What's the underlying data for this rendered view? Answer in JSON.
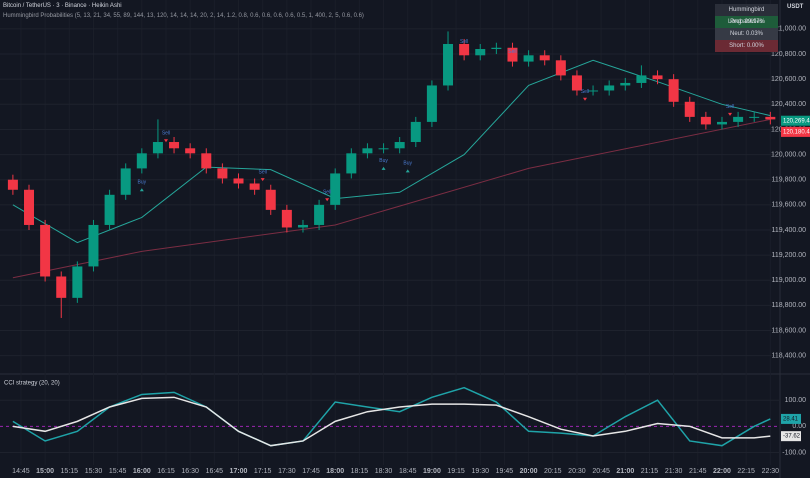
{
  "header": {
    "symbol": "Bitcoin / TetherUS · 3 · Binance · Heikin Ashi",
    "indicator": "Hummingbird Probabilities (5, 13, 21, 34, 55, 89, 144, 13, 120, 14, 14, 14, 20, 2, 14, 1.2, 0.8, 0.6, 0.6, 0.6, 0.6, 0.5, 1, 400, 2, 5, 0.6, 0.6)",
    "currency": "USDT"
  },
  "table": {
    "title": "Hummingbird Probabilities",
    "rows": [
      "Long: 99.97%",
      "Neut: 0.03%",
      "Short: 0.00%"
    ]
  },
  "chart_data": [
    {
      "type": "candlestick",
      "up_color": "#089981",
      "down_color": "#f23645",
      "x": [
        880,
        890,
        900,
        910,
        920,
        930,
        940,
        950,
        960,
        970,
        980,
        990,
        1000,
        1010,
        1020,
        1030,
        1040,
        1050,
        1060,
        1070,
        1080,
        1090,
        1100,
        1110,
        1120,
        1130,
        1140,
        1150,
        1160,
        1170,
        1180,
        1190,
        1200,
        1210,
        1220,
        1230,
        1240,
        1250,
        1260,
        1270,
        1280,
        1290,
        1300,
        1310,
        1320,
        1330,
        1340,
        1350
      ],
      "open": [
        119800,
        119720,
        119440,
        119030,
        118860,
        119110,
        119440,
        119680,
        119890,
        120010,
        120100,
        120050,
        120010,
        119890,
        119810,
        119770,
        119720,
        119560,
        119420,
        119440,
        119600,
        119850,
        120010,
        120050,
        120050,
        120100,
        120260,
        120550,
        120880,
        120790,
        120840,
        120850,
        120740,
        120790,
        120750,
        120630,
        120510,
        120510,
        120550,
        120570,
        120630,
        120600,
        120420,
        120300,
        120240,
        120260,
        120300,
        120300
      ],
      "high": [
        119840,
        119760,
        119480,
        119070,
        119150,
        119480,
        119720,
        119930,
        120050,
        120280,
        120140,
        120090,
        120050,
        119930,
        119850,
        119810,
        119760,
        119600,
        119480,
        119640,
        119890,
        120050,
        120090,
        120090,
        120140,
        120300,
        120590,
        120980,
        120920,
        120880,
        120890,
        120890,
        120830,
        120830,
        120790,
        120670,
        120550,
        120590,
        120610,
        120710,
        120670,
        120640,
        120460,
        120340,
        120300,
        120340,
        120340,
        120340
      ],
      "low": [
        119680,
        119400,
        118990,
        118700,
        118820,
        119070,
        119400,
        119640,
        119850,
        119970,
        120010,
        119970,
        119850,
        119770,
        119730,
        119680,
        119520,
        119380,
        119380,
        119400,
        119560,
        119810,
        119970,
        120010,
        120010,
        120060,
        120220,
        120510,
        120750,
        120750,
        120800,
        120700,
        120700,
        120710,
        120590,
        120470,
        120470,
        120470,
        120510,
        120530,
        120560,
        120380,
        120260,
        120200,
        120200,
        120220,
        120260,
        120240
      ],
      "close": [
        119720,
        119440,
        119030,
        118860,
        119110,
        119440,
        119680,
        119890,
        120010,
        120100,
        120050,
        120010,
        119890,
        119810,
        119770,
        119720,
        119560,
        119420,
        119440,
        119600,
        119850,
        120010,
        120050,
        120050,
        120100,
        120260,
        120550,
        120880,
        120790,
        120840,
        120850,
        120740,
        120790,
        120750,
        120630,
        120510,
        120510,
        120550,
        120570,
        120630,
        120600,
        120420,
        120300,
        120240,
        120260,
        120300,
        120300,
        120280
      ],
      "lines": [
        {
          "color": "#26a69a",
          "x": [
            880,
            920,
            960,
            1000,
            1040,
            1080,
            1120,
            1160,
            1200,
            1240,
            1280,
            1320,
            1350
          ],
          "values": [
            119600,
            119300,
            119500,
            119900,
            119880,
            119650,
            119700,
            120000,
            120550,
            120750,
            120580,
            120400,
            120310
          ]
        },
        {
          "color": "#7b2d43",
          "x": [
            880,
            960,
            1080,
            1200,
            1350
          ],
          "values": [
            119020,
            119230,
            119440,
            119890,
            120280
          ]
        }
      ],
      "signals": [
        {
          "x": 975,
          "y": 120170,
          "label": "Sell"
        },
        {
          "x": 1035,
          "y": 119860,
          "label": "Sell"
        },
        {
          "x": 1075,
          "y": 119700,
          "label": "Sell"
        },
        {
          "x": 1125,
          "y": 119930,
          "label": "Buy"
        },
        {
          "x": 1160,
          "y": 120900,
          "label": "Sell"
        },
        {
          "x": 1190,
          "y": 120820,
          "label": "Sell"
        },
        {
          "x": 1235,
          "y": 120500,
          "label": "Sell"
        },
        {
          "x": 1325,
          "y": 120380,
          "label": "Sell"
        },
        {
          "x": 960,
          "y": 119780,
          "label": "Buy"
        },
        {
          "x": 1110,
          "y": 119950,
          "label": "Buy"
        }
      ],
      "price_labels": [
        {
          "value": 120269.44,
          "label": "120,269.44",
          "color": "#089981"
        },
        {
          "value": 120180.44,
          "label": "120,180.44",
          "color": "#f23645"
        }
      ],
      "ylim": [
        118270,
        121230
      ],
      "xlim": [
        872,
        1356
      ],
      "yticks": [
        {
          "value": 121000,
          "label": "121,000.00"
        },
        {
          "value": 120800,
          "label": "120,800.00"
        },
        {
          "value": 120600,
          "label": "120,600.00"
        },
        {
          "value": 120400,
          "label": "120,400.00"
        },
        {
          "value": 120200,
          "label": "120,200.00"
        },
        {
          "value": 120000,
          "label": "120,000.00"
        },
        {
          "value": 119800,
          "label": "119,800.00"
        },
        {
          "value": 119600,
          "label": "119,600.00"
        },
        {
          "value": 119400,
          "label": "119,400.00"
        },
        {
          "value": 119200,
          "label": "119,200.00"
        },
        {
          "value": 119000,
          "label": "119,000.00"
        },
        {
          "value": 118800,
          "label": "118,800.00"
        },
        {
          "value": 118600,
          "label": "118,600.00"
        },
        {
          "value": 118400,
          "label": "118,400.00"
        }
      ],
      "xticks": [
        {
          "value": 885,
          "label": "14:45"
        },
        {
          "value": 900,
          "label": "15:00"
        },
        {
          "value": 915,
          "label": "15:15"
        },
        {
          "value": 930,
          "label": "15:30"
        },
        {
          "value": 945,
          "label": "15:45"
        },
        {
          "value": 960,
          "label": "16:00"
        },
        {
          "value": 975,
          "label": "16:15"
        },
        {
          "value": 990,
          "label": "16:30"
        },
        {
          "value": 1005,
          "label": "16:45"
        },
        {
          "value": 1020,
          "label": "17:00"
        },
        {
          "value": 1035,
          "label": "17:15"
        },
        {
          "value": 1050,
          "label": "17:30"
        },
        {
          "value": 1065,
          "label": "17:45"
        },
        {
          "value": 1080,
          "label": "18:00"
        },
        {
          "value": 1095,
          "label": "18:15"
        },
        {
          "value": 1110,
          "label": "18:30"
        },
        {
          "value": 1125,
          "label": "18:45"
        },
        {
          "value": 1140,
          "label": "19:00"
        },
        {
          "value": 1155,
          "label": "19:15"
        },
        {
          "value": 1170,
          "label": "19:30"
        },
        {
          "value": 1185,
          "label": "19:45"
        },
        {
          "value": 1200,
          "label": "20:00"
        },
        {
          "value": 1215,
          "label": "20:15"
        },
        {
          "value": 1230,
          "label": "20:30"
        },
        {
          "value": 1245,
          "label": "20:45"
        },
        {
          "value": 1260,
          "label": "21:00"
        },
        {
          "value": 1275,
          "label": "21:15"
        },
        {
          "value": 1290,
          "label": "21:30"
        },
        {
          "value": 1305,
          "label": "21:45"
        },
        {
          "value": 1320,
          "label": "22:00"
        },
        {
          "value": 1335,
          "label": "22:15"
        },
        {
          "value": 1350,
          "label": "22:30"
        }
      ]
    },
    {
      "type": "line",
      "title": "CCI strategy (20, 20)",
      "xlim": [
        872,
        1356
      ],
      "ylim": [
        -148,
        185
      ],
      "yticks": [
        {
          "value": 100,
          "label": "100.00"
        },
        {
          "value": 0,
          "label": "0.00"
        },
        {
          "value": -100,
          "label": "-100.00"
        }
      ],
      "series": [
        {
          "color": "#1fa3a8",
          "x": [
            880,
            900,
            920,
            940,
            960,
            980,
            1000,
            1020,
            1040,
            1060,
            1080,
            1100,
            1120,
            1140,
            1160,
            1180,
            1200,
            1220,
            1240,
            1260,
            1280,
            1300,
            1320,
            1340,
            1350
          ],
          "values": [
            19,
            -56,
            -19,
            74,
            122,
            130,
            74,
            -19,
            -74,
            -56,
            93,
            74,
            56,
            111,
            148,
            93,
            -19,
            -26,
            -37,
            37,
            100,
            -56,
            -74,
            0,
            28.41
          ]
        },
        {
          "color": "#e6e6e6",
          "x": [
            880,
            900,
            920,
            940,
            960,
            980,
            1000,
            1020,
            1040,
            1060,
            1080,
            1100,
            1120,
            1140,
            1160,
            1180,
            1200,
            1220,
            1240,
            1260,
            1280,
            1300,
            1320,
            1340,
            1350
          ],
          "values": [
            0,
            -19,
            19,
            74,
            107,
            111,
            74,
            -19,
            -74,
            -56,
            19,
            56,
            74,
            85,
            85,
            81,
            37,
            -11,
            -37,
            -19,
            11,
            0,
            -44,
            -44,
            -37.62
          ]
        }
      ]
    }
  ]
}
